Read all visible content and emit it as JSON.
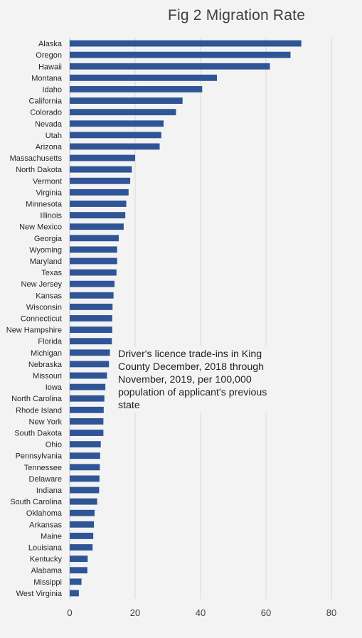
{
  "chart_data": {
    "type": "bar",
    "orientation": "horizontal",
    "title": "Fig 2 Migration Rate",
    "xlabel": "",
    "ylabel": "",
    "xlim": [
      0,
      80
    ],
    "xticks": [
      "0",
      "20",
      "40",
      "60",
      "80"
    ],
    "grid": "vertical",
    "bar_color": "#2f5597",
    "annotation": "Driver's licence trade-ins in King County December, 2018 through November, 2019, per 100,000 population of  applicant's previous state",
    "categories": [
      "Alaska",
      "Oregon",
      "Hawaii",
      "Montana",
      "Idaho",
      "California",
      "Colorado",
      "Nevada",
      "Utah",
      "Arizona",
      "Massachusetts",
      "North Dakota",
      "Vermont",
      "Virginia",
      "Minnesota",
      "Illinois",
      "New Mexico",
      "Georgia",
      "Wyoming",
      "Maryland",
      "Texas",
      "New Jersey",
      "Kansas",
      "Wisconsin",
      "Connecticut",
      "New Hampshire",
      "Florida",
      "Michigan",
      "Nebraska",
      "Missouri",
      "Iowa",
      "North Carolina",
      "Rhode Island",
      "New York",
      "South Dakota",
      "Ohio",
      "Pennsylvania",
      "Tennessee",
      "Delaware",
      "Indiana",
      "South Carolina",
      "Oklahoma",
      "Arkansas",
      "Maine",
      "Louisiana",
      "Kentucky",
      "Alabama",
      "Missippi",
      "West Virginia"
    ],
    "values": [
      70.8,
      67.5,
      61.2,
      45.0,
      40.5,
      34.5,
      32.5,
      28.7,
      28.0,
      27.5,
      20.0,
      19.0,
      18.5,
      18.0,
      17.3,
      17.0,
      16.5,
      15.0,
      14.5,
      14.5,
      14.3,
      13.7,
      13.4,
      13.1,
      13.0,
      13.0,
      12.9,
      12.3,
      12.0,
      11.4,
      10.9,
      10.6,
      10.4,
      10.3,
      10.3,
      9.5,
      9.3,
      9.2,
      9.1,
      9.0,
      8.4,
      7.6,
      7.4,
      7.2,
      7.0,
      5.5,
      5.4,
      3.6,
      2.8
    ]
  }
}
